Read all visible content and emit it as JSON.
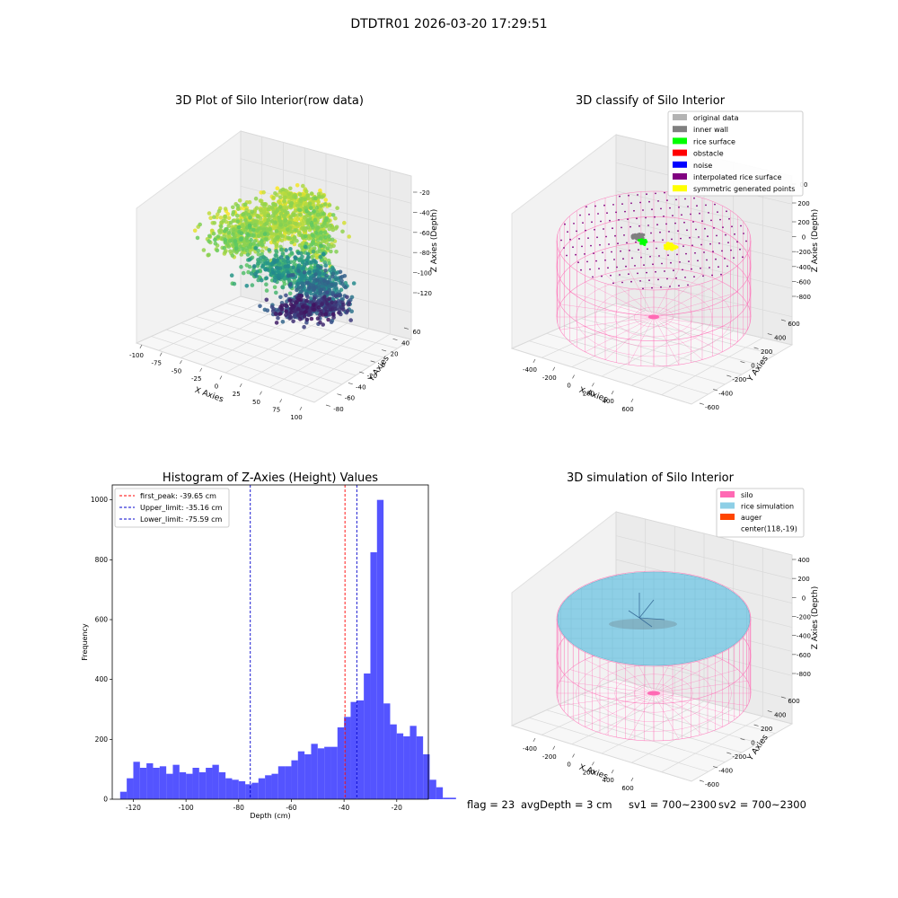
{
  "suptitle": "DTDTR01 2026-03-20 17:29:51",
  "status": {
    "flag": "flag = 23",
    "avg_depth": "avgDepth = 3 cm",
    "sv1": "sv1 = 700~2300",
    "sv2": "sv2 = 700~2300"
  },
  "colors": {
    "hist_bar": "#4b4bff",
    "first_peak_line": "#ff0000",
    "limit_line": "#0000cc",
    "silo_wire": "#ff69b4",
    "rice_simulation": "#8ecfe6",
    "auger": "#ff4500",
    "inner_wall": "#808080",
    "rice_surface": "#00ff00",
    "obstacle": "#ff0000",
    "noise": "#0000ff",
    "interpolated": "#800080",
    "symmetric": "#ffff00",
    "original": "#b3b3b3"
  },
  "chart_data": [
    {
      "type": "scatter3d",
      "title": "3D Plot of Silo Interior(row data)",
      "xlabel": "X Axies",
      "ylabel": "Y Axies",
      "zlabel": "Z Axies (Depth)",
      "xlim": [
        -110,
        100
      ],
      "ylim": [
        -80,
        65
      ],
      "zlim": [
        -130,
        -10
      ],
      "x_ticks": [
        "-100",
        "-75",
        "-50",
        "-25",
        "0",
        "25",
        "50",
        "75",
        "100"
      ],
      "y_ticks": [
        "-80",
        "-60",
        "-40",
        "-20",
        "0",
        "20",
        "40",
        "60"
      ],
      "z_ticks": [
        "-20",
        "-40",
        "-60",
        "-80",
        "-100",
        "-120"
      ],
      "colormap": "viridis",
      "grid": true
    },
    {
      "type": "scatter3d",
      "title": "3D classify of Silo Interior",
      "xlabel": "X Axies",
      "ylabel": "Y Axies",
      "zlabel": "Z Axies (Depth)",
      "x_ticks": [
        "-400",
        "-200",
        "0",
        "200",
        "400",
        "600"
      ],
      "y_ticks": [
        "-600",
        "-400",
        "-200",
        "0",
        "200",
        "400",
        "600"
      ],
      "z_ticks": [
        "200",
        "0",
        "-200",
        "-400",
        "-600",
        "-800"
      ],
      "z_ticks_partial": [
        "00",
        "200"
      ],
      "legend": [
        "original data",
        "inner wall",
        "rice surface",
        "obstacle",
        "noise",
        "interpolated rice surface",
        "symmetric generated points"
      ],
      "legend_loc": "upper-right",
      "grid": true
    },
    {
      "type": "bar",
      "title": "Histogram of Z-Axies (Height) Values",
      "xlabel": "Depth (cm)",
      "ylabel": "Frequency",
      "bin_width": 2.5,
      "bin_start": -125,
      "values": [
        25,
        70,
        125,
        105,
        120,
        105,
        110,
        85,
        115,
        90,
        85,
        105,
        90,
        105,
        115,
        90,
        70,
        65,
        60,
        50,
        55,
        70,
        80,
        85,
        110,
        110,
        130,
        160,
        150,
        185,
        170,
        175,
        175,
        240,
        275,
        325,
        330,
        420,
        825,
        1000,
        320,
        250,
        220,
        210,
        245,
        210,
        150,
        65,
        40,
        5,
        5
      ],
      "xlim": [
        -128,
        -8
      ],
      "ylim": [
        0,
        1050
      ],
      "x_ticks": [
        -120,
        -100,
        -80,
        -60,
        -40,
        -20
      ],
      "y_ticks": [
        0,
        200,
        400,
        600,
        800,
        1000
      ],
      "vlines": [
        {
          "label": "first_peak: -39.65 cm",
          "x": -39.65,
          "color": "red"
        },
        {
          "label": "Upper_limit: -35.16 cm",
          "x": -35.16,
          "color": "blue"
        },
        {
          "label": "Lower_limit: -75.59 cm",
          "x": -75.59,
          "color": "blue"
        }
      ],
      "legend_loc": "upper-left"
    },
    {
      "type": "surface3d",
      "title": "3D simulation of Silo Interior",
      "xlabel": "X Axies",
      "ylabel": "Y Axies",
      "zlabel": "Z Axies (Depth)",
      "x_ticks": [
        "-400",
        "-200",
        "0",
        "200",
        "400",
        "600"
      ],
      "y_ticks": [
        "-600",
        "-400",
        "-200",
        "0",
        "200",
        "400",
        "600"
      ],
      "z_ticks": [
        "400",
        "200",
        "0",
        "-200",
        "-400",
        "-600",
        "-800"
      ],
      "legend": [
        "silo",
        "rice simulation",
        "auger",
        "center(118,-19)"
      ],
      "legend_loc": "upper-right",
      "grid": true
    }
  ]
}
